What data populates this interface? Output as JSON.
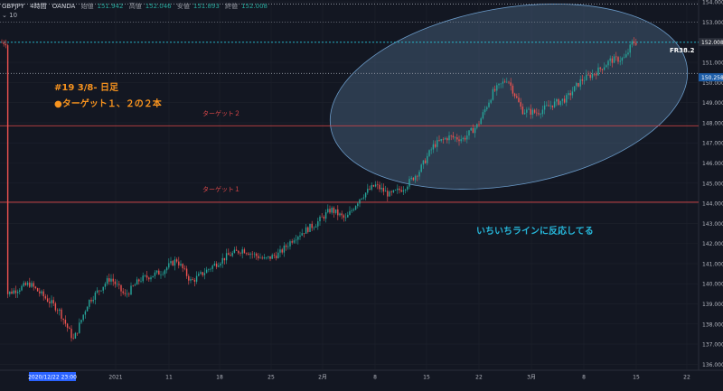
{
  "header": {
    "symbol": "GBPJPY",
    "interval": "4時間",
    "broker": "OANDA",
    "open_label": "始値",
    "open": "151.942",
    "high_label": "高値",
    "high": "152.046",
    "low_label": "安値",
    "low": "151.893",
    "close_label": "終値",
    "close": "152.008",
    "indicator": "10"
  },
  "annotations": {
    "title": "#19  3/8-  日足",
    "subtitle": "●ターゲット１、２の２本",
    "target2": "ターゲット２",
    "target1": "ターゲット１",
    "fr_label": "FR38.2",
    "note": "いちいちラインに反応してる"
  },
  "colors": {
    "background": "#131722",
    "up": "#26a69a",
    "down": "#ef5350",
    "target_line": "#e0484a",
    "orange_text": "#f7931e",
    "cyan_text": "#26b5d8",
    "ellipse_fill": "#5b7fa0"
  },
  "chart_data": {
    "type": "candlestick",
    "title": "GBPJPY 4時間 OANDA",
    "y_ticks": [
      "154.000",
      "153.000",
      "152.000",
      "151.000",
      "150.000",
      "149.000",
      "148.000",
      "147.000",
      "146.000",
      "145.000",
      "144.000",
      "143.000",
      "142.000",
      "141.000",
      "140.000",
      "139.000",
      "138.000",
      "137.000",
      "136.000"
    ],
    "ylim": [
      135.7,
      154.1
    ],
    "x_ticks": [
      "2020/12/22  23:00",
      "2021",
      "11",
      "18",
      "25",
      "2月",
      "8",
      "15",
      "22",
      "3月",
      "8",
      "15",
      "22"
    ],
    "price_labels": [
      {
        "value": 152.008,
        "text": "152.008"
      },
      {
        "value": 150.258,
        "text": "150.258"
      }
    ],
    "horizontal_lines": [
      {
        "name": "target2",
        "value": 147.85
      },
      {
        "name": "target1",
        "value": 144.05
      },
      {
        "name": "fr38.2",
        "value": 152.0
      },
      {
        "name": "level",
        "value": 150.45
      }
    ],
    "series": [
      {
        "name": "close",
        "points": [
          [
            "2020-12-21",
            139.5
          ],
          [
            "2020-12-24",
            140.0
          ],
          [
            "2020-12-28",
            138.7
          ],
          [
            "2020-12-30",
            137.2
          ],
          [
            "2021-01-01",
            139.1
          ],
          [
            "2021-01-04",
            140.3
          ],
          [
            "2021-01-06",
            139.4
          ],
          [
            "2021-01-08",
            140.2
          ],
          [
            "2021-01-11",
            140.6
          ],
          [
            "2021-01-13",
            141.2
          ],
          [
            "2021-01-15",
            140.1
          ],
          [
            "2021-01-18",
            140.9
          ],
          [
            "2021-01-20",
            141.4
          ],
          [
            "2021-01-22",
            141.7
          ],
          [
            "2021-01-25",
            141.2
          ],
          [
            "2021-01-27",
            141.5
          ],
          [
            "2021-01-29",
            142.3
          ],
          [
            "2021-02-01",
            143.0
          ],
          [
            "2021-02-03",
            143.7
          ],
          [
            "2021-02-05",
            143.2
          ],
          [
            "2021-02-07",
            144.3
          ],
          [
            "2021-02-09",
            144.9
          ],
          [
            "2021-02-11",
            144.4
          ],
          [
            "2021-02-13",
            144.8
          ],
          [
            "2021-02-15",
            145.6
          ],
          [
            "2021-02-17",
            146.9
          ],
          [
            "2021-02-19",
            147.3
          ],
          [
            "2021-02-21",
            147.2
          ],
          [
            "2021-02-23",
            147.9
          ],
          [
            "2021-02-25",
            149.5
          ],
          [
            "2021-02-27",
            150.2
          ],
          [
            "2021-03-01",
            148.6
          ],
          [
            "2021-03-03",
            148.5
          ],
          [
            "2021-03-05",
            148.9
          ],
          [
            "2021-03-07",
            149.2
          ],
          [
            "2021-03-09",
            150.1
          ],
          [
            "2021-03-11",
            150.5
          ],
          [
            "2021-03-13",
            151.1
          ],
          [
            "2021-03-15",
            151.2
          ],
          [
            "2021-03-16",
            152.0
          ]
        ]
      }
    ]
  }
}
